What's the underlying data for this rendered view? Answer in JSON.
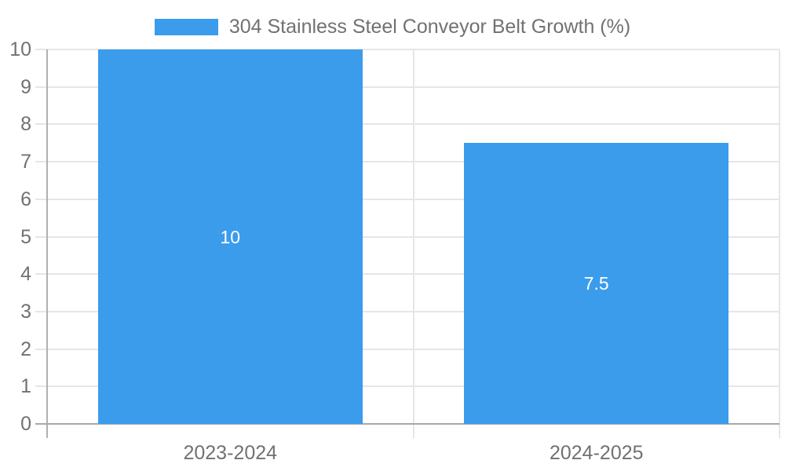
{
  "chart_data": {
    "type": "bar",
    "title": "",
    "legend": {
      "label": "304 Stainless Steel Conveyor Belt Growth (%)",
      "position": "top"
    },
    "categories": [
      "2023-2024",
      "2024-2025"
    ],
    "series": [
      {
        "name": "304 Stainless Steel Conveyor Belt Growth (%)",
        "values": [
          10,
          7.5
        ],
        "data_labels": [
          "10",
          "7.5"
        ]
      }
    ],
    "xlabel": "",
    "ylabel": "",
    "ylim": [
      0,
      10
    ],
    "yticks": [
      0,
      1,
      2,
      3,
      4,
      5,
      6,
      7,
      8,
      9,
      10
    ],
    "grid": true,
    "legend_position": "top-center"
  },
  "colors": {
    "bar": "#3b9cec",
    "grid": "#e6e6e6",
    "axis": "#a8a8a8",
    "y_axis": "#b0b0b0",
    "text": "#717171",
    "data_label": "#ffffff",
    "background": "#ffffff"
  }
}
